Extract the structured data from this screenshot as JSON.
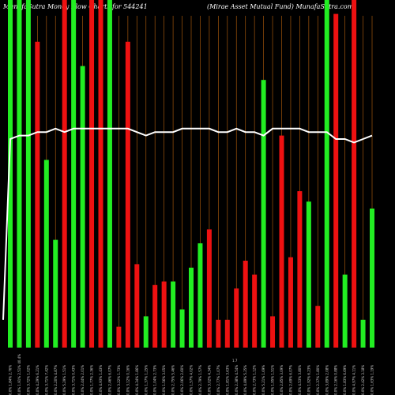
{
  "header": {
    "title_left": "MunafaSutra  Money Flow  Charts for 544241",
    "title_right": "(Mirae   Asset Mutual Fund) MunafaSutra.com"
  },
  "colors": {
    "up": "#22ee22",
    "down": "#ee1111",
    "price_line": "#ffffff",
    "grid": "#a0550b",
    "background": "#000000"
  },
  "chart_data": {
    "type": "bar",
    "ylim": [
      0,
      100
    ],
    "grid": "vertical",
    "center_label": "1.7",
    "series": [
      {
        "values": [
          100,
          100,
          100,
          88,
          54,
          31,
          100,
          100,
          81,
          100,
          100,
          100,
          6,
          88,
          24,
          9,
          18,
          19,
          19,
          11,
          23,
          30,
          34,
          8,
          8,
          17,
          25,
          21,
          77,
          9,
          61,
          26,
          45,
          42,
          12,
          100,
          96,
          21,
          100,
          8,
          40
        ],
        "directions": [
          "up",
          "up",
          "up",
          "down",
          "up",
          "up",
          "down",
          "up",
          "up",
          "down",
          "down",
          "up",
          "down",
          "down",
          "down",
          "up",
          "down",
          "down",
          "up",
          "up",
          "up",
          "up",
          "down",
          "down",
          "down",
          "down",
          "down",
          "down",
          "up",
          "down",
          "down",
          "down",
          "down",
          "up",
          "down",
          "up",
          "down",
          "up",
          "down",
          "up",
          "up"
        ]
      },
      {
        "values": [
          60,
          61,
          61,
          62,
          62,
          63,
          62,
          63,
          63,
          63,
          63,
          63,
          63,
          63,
          62,
          61,
          62,
          62,
          62,
          63,
          63,
          63,
          63,
          62,
          62,
          63,
          62,
          62,
          61,
          63,
          63,
          63,
          63,
          62,
          62,
          62,
          60,
          60,
          59,
          60,
          61
        ]
      }
    ],
    "categories": [
      "0.0% 1.84% 2.76%",
      "0.0% 1.91% 2.51% 40.4%",
      "0.0% 3.72% 1.02%",
      "0.0% 4.29% 6.21%",
      "0.0% 3.71% 7.42%",
      "0.0% 2.20% 4.87%",
      "0.0% 5.29% 1.51%",
      "0.0% 3.71% 0.43%",
      "0.0% 2.44% 2.01%",
      "0.0% 1.77% 2.36%",
      "0.0% 4.93% 1.43%",
      "0.0% 2.46% 6.07%",
      "0.0% 3.22% 1.73%",
      "0.0% 3.12% 0.16%",
      "0.0% 4.34% 1.86%",
      "0.0% 1.37% 1.25%",
      "0.0% 1.04% 2.73%",
      "0.0% 1.56% 3.05%",
      "0.0% 2.75% 5.46%",
      "0.0% 2.06% 2.60%",
      "0.0% 1.57% 4.02%",
      "0.0% 2.79% 1.57%",
      "0.0% 3.02% 4.34%",
      "0.0% 2.77% 1.07%",
      "0.0% 1.81% 3.63%",
      "0.0% 2.38% 4.54%",
      "0.0% 4.89% 5.25%",
      "0.0% 2.73% 1.12%",
      "0.0% 5.21% 1.69%",
      "0.0% 1.95% 1.51%",
      "0.0% 2.85% 3.09%",
      "0.0% 2.69% 6.07%",
      "0.0% 4.53% 3.80%",
      "0.0% 1.92% 6.23%",
      "0.0% 2.37% 1.80%",
      "0.0% 3.89% 2.08%",
      "0.0% 2.16% 0.88%",
      "0.0% 1.83% 6.69%",
      "0.0% 4.97% 4.11%",
      "0.0% 2.42% 3.18%",
      "0.0% 1.63% 1.19%"
    ]
  }
}
